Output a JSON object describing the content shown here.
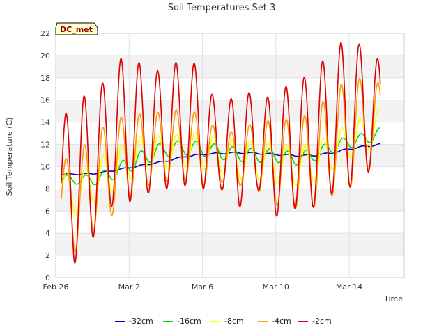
{
  "chart_data": {
    "type": "line",
    "title": "Soil Temperatures Set 3",
    "xlabel": "Time",
    "ylabel": "Soil Temperature (C)",
    "badge": "DC_met",
    "xlim": [
      0,
      19.0
    ],
    "ylim": [
      0,
      22
    ],
    "y_ticks": [
      0,
      2,
      4,
      6,
      8,
      10,
      12,
      14,
      16,
      18,
      20,
      22
    ],
    "x_ticks": [
      {
        "label": "Feb 26",
        "day": 0
      },
      {
        "label": "Mar 2",
        "day": 4
      },
      {
        "label": "Mar 6",
        "day": 8
      },
      {
        "label": "Mar 10",
        "day": 12
      },
      {
        "label": "Mar 14",
        "day": 16
      }
    ],
    "grid": true,
    "banded_background": true,
    "legend_position": "bottom-center",
    "series": [
      {
        "name": "-32cm",
        "color": "#0000bb",
        "peak_phase": 0.7,
        "mean": [
          [
            0.3,
            9.3
          ],
          [
            2,
            9.35
          ],
          [
            3,
            9.6
          ],
          [
            4,
            9.9
          ],
          [
            5,
            10.2
          ],
          [
            6,
            10.5
          ],
          [
            7,
            10.9
          ],
          [
            8,
            11.1
          ],
          [
            9,
            11.2
          ],
          [
            10,
            11.25
          ],
          [
            11,
            11.2
          ],
          [
            12,
            11.1
          ],
          [
            13,
            11.0
          ],
          [
            14,
            11.0
          ],
          [
            15,
            11.2
          ],
          [
            16,
            11.6
          ],
          [
            17,
            11.85
          ],
          [
            17.7,
            12.0
          ]
        ],
        "amp": [
          [
            0.3,
            0.05
          ],
          [
            17.7,
            0.08
          ]
        ]
      },
      {
        "name": "-16cm",
        "color": "#00dd00",
        "peak_phase": 0.65,
        "mean": [
          [
            0.3,
            9.0
          ],
          [
            1,
            8.8
          ],
          [
            2,
            8.8
          ],
          [
            3,
            9.3
          ],
          [
            4,
            10.2
          ],
          [
            5,
            11.0
          ],
          [
            6,
            11.6
          ],
          [
            7,
            11.7
          ],
          [
            8,
            11.6
          ],
          [
            9,
            11.3
          ],
          [
            10,
            11.1
          ],
          [
            11,
            11.0
          ],
          [
            12,
            11.0
          ],
          [
            13,
            10.7
          ],
          [
            14,
            11.0
          ],
          [
            15,
            11.7
          ],
          [
            16,
            12.2
          ],
          [
            17,
            12.6
          ],
          [
            17.7,
            13.0
          ]
        ],
        "amp": [
          [
            0.3,
            0.3
          ],
          [
            4,
            0.7
          ],
          [
            12,
            0.6
          ],
          [
            17.7,
            0.5
          ]
        ]
      },
      {
        "name": "-8cm",
        "color": "#ffff00",
        "peak_phase": 0.6,
        "mean": [
          [
            0.3,
            8.0
          ],
          [
            1,
            7.3
          ],
          [
            2,
            8.6
          ],
          [
            3,
            9.5
          ],
          [
            4,
            10.6
          ],
          [
            5,
            11.3
          ],
          [
            6,
            11.2
          ],
          [
            7,
            11.5
          ],
          [
            8,
            11.4
          ],
          [
            9,
            11.0
          ],
          [
            10,
            10.6
          ],
          [
            11,
            10.6
          ],
          [
            12,
            10.3
          ],
          [
            13,
            10.0
          ],
          [
            14,
            10.3
          ],
          [
            15,
            11.3
          ],
          [
            16,
            12.3
          ],
          [
            17,
            13.0
          ],
          [
            17.7,
            13.8
          ]
        ],
        "amp": [
          [
            0.3,
            1.8
          ],
          [
            3,
            1.9
          ],
          [
            6,
            1.5
          ],
          [
            12,
            1.8
          ],
          [
            17.7,
            1.5
          ]
        ]
      },
      {
        "name": "-4cm",
        "color": "#ff9900",
        "peak_phase": 0.57,
        "mean": [
          [
            0.3,
            7.5
          ],
          [
            1,
            6.5
          ],
          [
            2,
            8.5
          ],
          [
            3,
            9.8
          ],
          [
            4,
            11.0
          ],
          [
            5,
            11.5
          ],
          [
            6,
            11.8
          ],
          [
            7,
            12.0
          ],
          [
            8,
            11.5
          ],
          [
            9,
            10.8
          ],
          [
            10,
            10.8
          ],
          [
            11,
            11.0
          ],
          [
            12,
            10.3
          ],
          [
            13,
            10.3
          ],
          [
            14,
            10.5
          ],
          [
            15,
            12.0
          ],
          [
            16,
            13.0
          ],
          [
            17,
            13.8
          ],
          [
            17.7,
            14.0
          ]
        ],
        "amp": [
          [
            0.3,
            3.2
          ],
          [
            1,
            4.3
          ],
          [
            3,
            4.3
          ],
          [
            5,
            3.2
          ],
          [
            8,
            3.2
          ],
          [
            9,
            2.2
          ],
          [
            10,
            2.5
          ],
          [
            12,
            3.8
          ],
          [
            14,
            4.3
          ],
          [
            16,
            5.0
          ],
          [
            17.7,
            3.5
          ]
        ]
      },
      {
        "name": "-2cm",
        "color": "#dd0000",
        "peak_phase": 0.55,
        "mean": [
          [
            0.3,
            8.5
          ],
          [
            1,
            8.7
          ],
          [
            2,
            10.0
          ],
          [
            3,
            12.4
          ],
          [
            4,
            13.8
          ],
          [
            5,
            12.9
          ],
          [
            6,
            13.5
          ],
          [
            7,
            14.0
          ],
          [
            8,
            13.5
          ],
          [
            9,
            11.2
          ],
          [
            10,
            11.9
          ],
          [
            11,
            12.0
          ],
          [
            12,
            11.0
          ],
          [
            13,
            12.0
          ],
          [
            14,
            12.3
          ],
          [
            15,
            14.0
          ],
          [
            16,
            14.9
          ],
          [
            17,
            15.0
          ],
          [
            17.7,
            14.5
          ]
        ],
        "amp": [
          [
            0.3,
            5.5
          ],
          [
            1,
            7.5
          ],
          [
            2,
            6.5
          ],
          [
            3,
            6.0
          ],
          [
            4,
            7.0
          ],
          [
            5,
            5.3
          ],
          [
            6,
            5.5
          ],
          [
            7,
            5.7
          ],
          [
            8,
            5.5
          ],
          [
            9,
            3.2
          ],
          [
            10,
            5.6
          ],
          [
            11,
            4.0
          ],
          [
            12,
            5.5
          ],
          [
            13,
            5.8
          ],
          [
            14,
            6.0
          ],
          [
            15,
            6.5
          ],
          [
            16,
            6.8
          ],
          [
            17,
            5.5
          ],
          [
            17.7,
            5.0
          ]
        ]
      }
    ]
  }
}
